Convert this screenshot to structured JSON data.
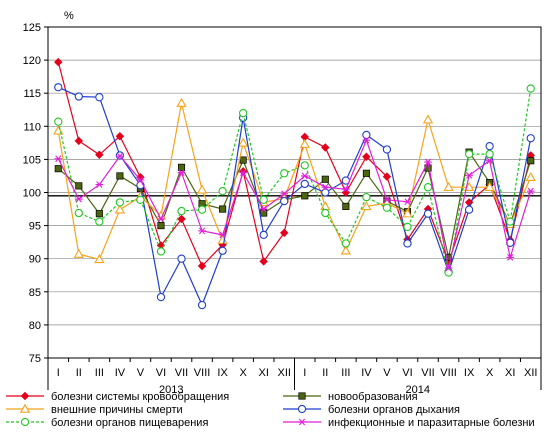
{
  "chart_data": {
    "type": "line",
    "unit_label": "%",
    "ylim": [
      75,
      125
    ],
    "y_ticks": [
      75,
      80,
      85,
      90,
      95,
      100,
      105,
      110,
      115,
      120,
      125
    ],
    "reference_line": 99.5,
    "months": [
      "I",
      "II",
      "III",
      "IV",
      "V",
      "VI",
      "VII",
      "VIII",
      "IX",
      "X",
      "XI",
      "XII",
      "I",
      "II",
      "III",
      "IV",
      "V",
      "VI",
      "VII",
      "VIII",
      "IX",
      "X",
      "XI",
      "XII"
    ],
    "years": [
      {
        "label": "2013",
        "from": 0,
        "to": 11
      },
      {
        "label": "2014",
        "from": 12,
        "to": 23
      }
    ],
    "grid": "horizontal",
    "legend_position": "bottom",
    "series": [
      {
        "name": "болезни системы кровообращения",
        "color": "#e3001b",
        "marker": "diamond-filled",
        "values": [
          119.7,
          107.8,
          105.7,
          108.5,
          102.3,
          92.0,
          96.0,
          88.9,
          92.1,
          103.2,
          89.6,
          93.9,
          108.4,
          106.8,
          100.0,
          105.4,
          102.4,
          92.9,
          97.5,
          89.5,
          98.5,
          101.2,
          92.8,
          105.6
        ]
      },
      {
        "name": "новообразования",
        "color": "#4c6610",
        "marker": "square-filled",
        "values": [
          103.6,
          101.0,
          96.8,
          102.5,
          100.6,
          95.0,
          103.8,
          98.3,
          97.5,
          104.9,
          96.9,
          98.9,
          99.5,
          102.0,
          97.9,
          102.9,
          98.7,
          97.1,
          103.7,
          90.2,
          106.1,
          101.5,
          95.2,
          104.8
        ]
      },
      {
        "name": "внешние причины смерти",
        "color": "#f7a21b",
        "marker": "triangle-open",
        "values": [
          109.3,
          90.7,
          89.9,
          97.4,
          99.4,
          96.5,
          113.5,
          100.4,
          92.8,
          107.5,
          98.5,
          99.1,
          107.3,
          97.9,
          91.2,
          97.9,
          98.4,
          96.8,
          111.0,
          100.8,
          100.8,
          100.8,
          95.2,
          102.3
        ]
      },
      {
        "name": "болезни органов дыхания",
        "color": "#1f3ecf",
        "marker": "circle-open",
        "values": [
          115.9,
          114.5,
          114.4,
          105.6,
          101.1,
          84.2,
          90.0,
          83.0,
          91.2,
          111.3,
          93.6,
          98.7,
          101.3,
          100.0,
          101.8,
          108.7,
          106.5,
          92.3,
          96.8,
          88.0,
          97.4,
          107.0,
          92.4,
          108.2
        ]
      },
      {
        "name": "болезни органов пищеварения",
        "color": "#1fc81f",
        "marker": "circle-open-dashed",
        "values": [
          110.7,
          96.9,
          95.6,
          98.5,
          98.9,
          91.1,
          97.2,
          97.4,
          100.2,
          112.0,
          98.9,
          102.9,
          104.1,
          96.9,
          92.3,
          99.3,
          97.7,
          94.8,
          100.8,
          87.9,
          105.8,
          105.8,
          95.6,
          115.7
        ]
      },
      {
        "name": "инфекционные и паразитарные болезни",
        "color": "#e01fd8",
        "marker": "star",
        "values": [
          105.1,
          99.0,
          101.2,
          105.5,
          101.9,
          96.0,
          103.0,
          94.2,
          93.6,
          103.0,
          97.5,
          99.8,
          102.5,
          100.8,
          100.5,
          107.9,
          98.9,
          98.6,
          104.6,
          88.6,
          102.6,
          104.8,
          90.2,
          100.2
        ]
      }
    ]
  }
}
